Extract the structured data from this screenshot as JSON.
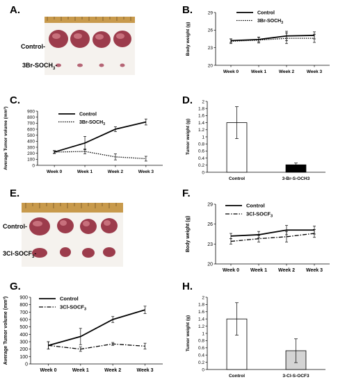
{
  "panels": {
    "A": "A.",
    "B": "B.",
    "C": "C.",
    "D": "D.",
    "E": "E.",
    "F": "F.",
    "G": "G.",
    "H": "H."
  },
  "photos": {
    "A": {
      "row1": "Control-",
      "row2": "3Br-SOCH",
      "row2_sub": "3"
    },
    "E": {
      "row1": "Control-",
      "row2": "3Cl-SOCF",
      "row2_sub": "3"
    }
  },
  "colors": {
    "tumor": "#9c3c4c",
    "tumor_light": "#c8707c",
    "tray": "#f5f2ee",
    "ruler": "#c89a4c"
  },
  "chart_data": [
    {
      "id": "B",
      "type": "line",
      "x": [
        "Week 0",
        "Week 1",
        "Week 2",
        "Week 3"
      ],
      "ylabel": "Body weight (g)",
      "ylim": [
        20,
        29
      ],
      "yticks": [
        20,
        23,
        26,
        29
      ],
      "legend_position": "top-center",
      "series": [
        {
          "name": "Control",
          "style": "solid",
          "values": [
            24.2,
            24.4,
            25.0,
            25.1
          ],
          "err": [
            0.3,
            0.4,
            0.8,
            0.6
          ]
        },
        {
          "name": "3Br-SOCH",
          "name_sub": "3",
          "style": "dotted",
          "values": [
            24.1,
            24.3,
            24.6,
            24.6
          ],
          "err": [
            0.4,
            0.5,
            0.9,
            0.7
          ]
        }
      ]
    },
    {
      "id": "C",
      "type": "line",
      "x": [
        "Week 0",
        "Week 1",
        "Week 2",
        "Week 3"
      ],
      "ylabel": "Average Tumor volume (mm³)",
      "ylim": [
        0,
        900
      ],
      "yticks": [
        0,
        100,
        200,
        300,
        400,
        500,
        600,
        700,
        800,
        900
      ],
      "legend_position": "top-center",
      "series": [
        {
          "name": "Control",
          "style": "solid",
          "values": [
            220,
            370,
            600,
            720
          ],
          "err": [
            20,
            110,
            40,
            50
          ]
        },
        {
          "name": "3Br-SOCH",
          "name_sub": "3",
          "style": "dotted",
          "values": [
            220,
            230,
            140,
            110
          ],
          "err": [
            25,
            40,
            50,
            40
          ]
        }
      ]
    },
    {
      "id": "D",
      "type": "bar",
      "categories": [
        "Control",
        "3-Br-S-OCH3"
      ],
      "ylabel": "Tumor weight (g)",
      "ylim": [
        0,
        2
      ],
      "yticks": [
        0,
        0.2,
        0.4,
        0.6,
        0.8,
        1,
        1.2,
        1.4,
        1.6,
        1.8,
        2
      ],
      "values": [
        1.4,
        0.21
      ],
      "err": [
        0.45,
        0.05
      ],
      "fills": [
        "#ffffff",
        "#000000"
      ]
    },
    {
      "id": "F",
      "type": "line",
      "x": [
        "Week 0",
        "Week 1",
        "Week 2",
        "Week 3"
      ],
      "ylabel": "Body weight (g)",
      "ylim": [
        20,
        29
      ],
      "yticks": [
        20,
        23,
        26,
        29
      ],
      "legend_position": "top-center",
      "series": [
        {
          "name": "Control",
          "style": "solid",
          "values": [
            24.2,
            24.4,
            25.1,
            25.1
          ],
          "err": [
            0.4,
            0.5,
            0.7,
            0.6
          ]
        },
        {
          "name": "3Cl-SOCF",
          "name_sub": "3",
          "style": "dashdot",
          "values": [
            23.4,
            23.8,
            24.1,
            24.6
          ],
          "err": [
            0.4,
            0.5,
            0.8,
            0.6
          ]
        }
      ]
    },
    {
      "id": "G",
      "type": "line",
      "x": [
        "Week 0",
        "Week 1",
        "Week 2",
        "Week 3"
      ],
      "ylabel": "Average Tumor volume (mm³)",
      "ylim": [
        0,
        900
      ],
      "yticks": [
        0,
        100,
        200,
        300,
        400,
        500,
        600,
        700,
        800,
        900
      ],
      "legend_position": "top-center",
      "series": [
        {
          "name": "Control",
          "style": "solid",
          "values": [
            250,
            370,
            600,
            730
          ],
          "err": [
            50,
            110,
            40,
            50
          ]
        },
        {
          "name": "3Cl-SOCF",
          "name_sub": "3",
          "style": "dashdot",
          "values": [
            250,
            200,
            270,
            240
          ],
          "err": [
            50,
            30,
            20,
            40
          ]
        }
      ]
    },
    {
      "id": "H",
      "type": "bar",
      "categories": [
        "Control",
        "3-Cl-S-OCF3"
      ],
      "ylabel": "Tumor weight (g)",
      "ylim": [
        0,
        2
      ],
      "yticks": [
        0,
        0.2,
        0.4,
        0.6,
        0.8,
        1,
        1.2,
        1.4,
        1.6,
        1.8,
        2
      ],
      "values": [
        1.4,
        0.52
      ],
      "err": [
        0.45,
        0.33
      ],
      "fills": [
        "#ffffff",
        "#d4d4d4"
      ]
    }
  ]
}
